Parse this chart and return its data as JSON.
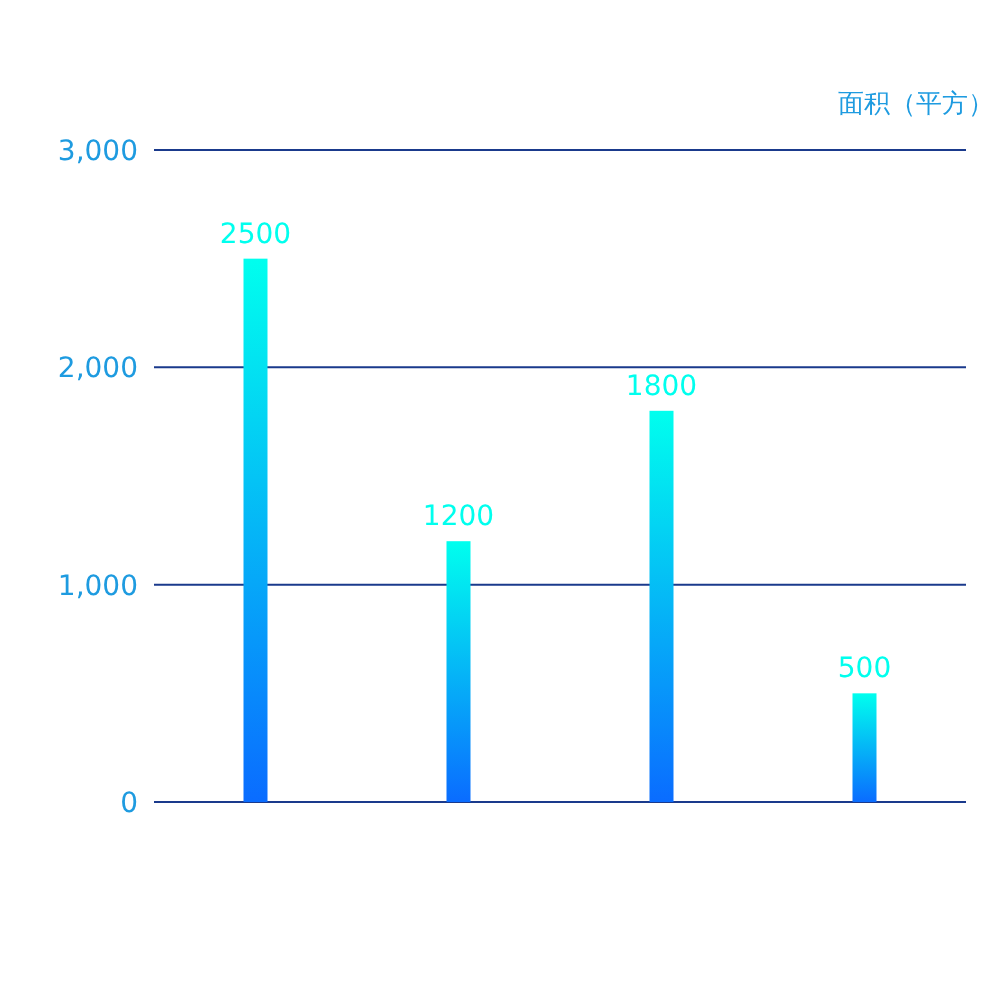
{
  "chart_data": {
    "type": "bar",
    "ylabel": "面积（平方）",
    "categories": [
      null,
      null,
      null,
      null
    ],
    "series": [
      {
        "color": "#00ffee",
        "values": [
          2500,
          1200,
          1800,
          500
        ]
      }
    ],
    "ylim": [
      0,
      3000
    ],
    "yticks": [
      {
        "value": 0,
        "label": "0"
      },
      {
        "value": 1000,
        "label": "1,000"
      },
      {
        "value": 2000,
        "label": "2,000"
      },
      {
        "value": 3000,
        "label": "3,000"
      }
    ],
    "grid": "y",
    "data_labels": true
  }
}
